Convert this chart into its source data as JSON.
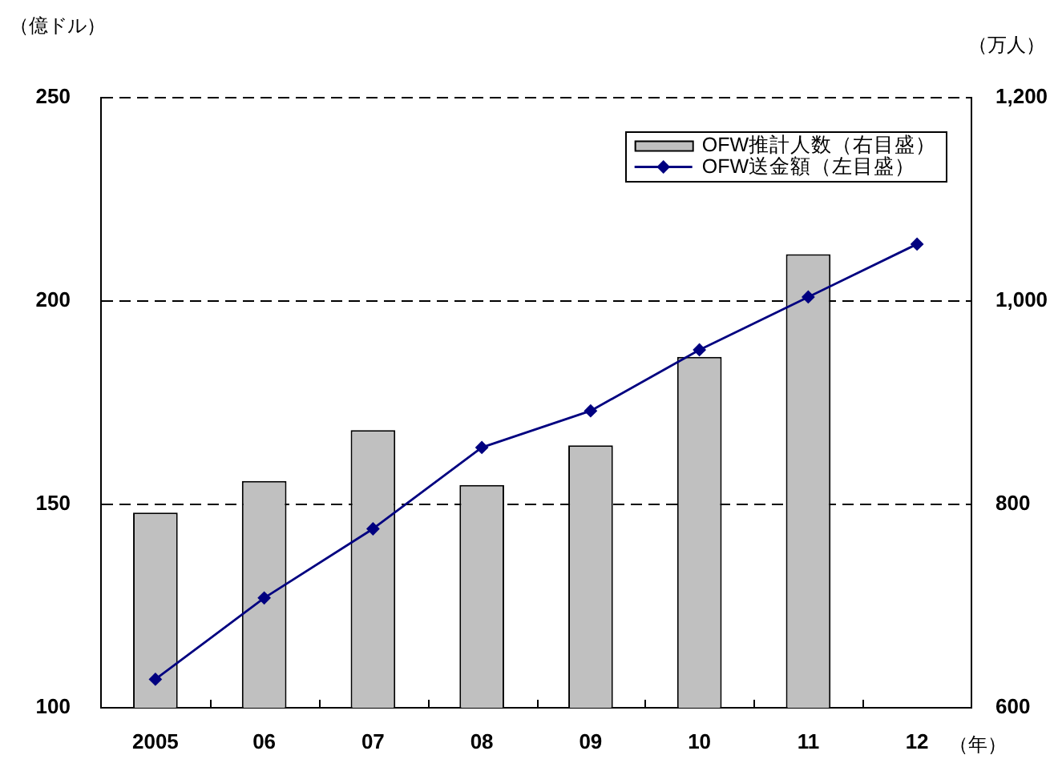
{
  "chart_data": {
    "type": "bar",
    "categories": [
      "2005",
      "06",
      "07",
      "08",
      "09",
      "10",
      "11",
      "12"
    ],
    "series": [
      {
        "name": "OFW推計人数（右目盛）",
        "axis": "y2",
        "color": "#c0c0c0",
        "values": [
          792,
          823,
          873,
          819,
          858,
          945,
          1046,
          null
        ]
      },
      {
        "name": "OFW送金額（左目盛）",
        "type": "line",
        "color": "#000080",
        "values": [
          107,
          127,
          144,
          164,
          173,
          188,
          201,
          214
        ]
      }
    ],
    "xlabel": "（年）",
    "ylabel": "（億ドル）",
    "y2label": "（万人）",
    "ylim": [
      100,
      250
    ],
    "yticks": [
      100,
      150,
      200,
      250
    ],
    "y2lim": [
      600,
      1200
    ],
    "y2ticks": [
      600,
      800,
      {
        "value": 1000,
        "label": "1,000"
      },
      {
        "value": 1200,
        "label": "1,200"
      }
    ],
    "grid": "y",
    "legend": "top right",
    "marker": "diamond",
    "line_style": "solid"
  }
}
